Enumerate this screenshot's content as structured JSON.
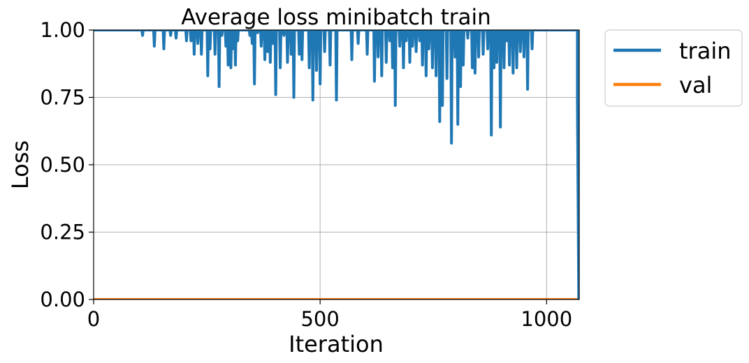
{
  "chart_data": {
    "type": "line",
    "title": "Average loss minibatch train",
    "xlabel": "Iteration",
    "ylabel": "Loss",
    "xlim": [
      0,
      1072
    ],
    "ylim": [
      0,
      1
    ],
    "x_ticks": [
      0,
      500,
      1000
    ],
    "x_tick_labels": [
      "0",
      "500",
      "1000"
    ],
    "y_ticks": [
      0,
      0.25,
      0.5,
      0.75,
      1.0
    ],
    "y_tick_labels": [
      "0.00",
      "0.25",
      "0.50",
      "0.75",
      "1.00"
    ],
    "grid": true,
    "legend_position": "outside-top-right",
    "series": [
      {
        "name": "train",
        "color": "#1f77b4",
        "baseline": 1.0,
        "dips": [
          [
            108,
            0.98
          ],
          [
            134,
            0.94
          ],
          [
            155,
            0.93
          ],
          [
            170,
            0.98
          ],
          [
            182,
            0.97
          ],
          [
            205,
            0.96
          ],
          [
            215,
            0.96
          ],
          [
            222,
            0.91
          ],
          [
            230,
            0.95
          ],
          [
            238,
            0.91
          ],
          [
            252,
            0.83
          ],
          [
            257,
            0.93
          ],
          [
            268,
            0.91
          ],
          [
            277,
            0.79
          ],
          [
            283,
            0.98
          ],
          [
            292,
            0.94
          ],
          [
            297,
            0.87
          ],
          [
            303,
            0.86
          ],
          [
            307,
            0.93
          ],
          [
            313,
            0.87
          ],
          [
            318,
            0.96
          ],
          [
            345,
            0.98
          ],
          [
            350,
            0.95
          ],
          [
            355,
            0.8
          ],
          [
            362,
            0.99
          ],
          [
            370,
            0.94
          ],
          [
            378,
            0.89
          ],
          [
            384,
            0.92
          ],
          [
            390,
            0.88
          ],
          [
            396,
            0.95
          ],
          [
            402,
            0.76
          ],
          [
            412,
            0.86
          ],
          [
            420,
            0.98
          ],
          [
            428,
            0.88
          ],
          [
            436,
            0.91
          ],
          [
            442,
            0.75
          ],
          [
            454,
            0.91
          ],
          [
            460,
            0.89
          ],
          [
            476,
            0.86
          ],
          [
            484,
            0.74
          ],
          [
            492,
            0.85
          ],
          [
            500,
            0.8
          ],
          [
            510,
            0.92
          ],
          [
            522,
            0.87
          ],
          [
            536,
            0.74
          ],
          [
            570,
            0.89
          ],
          [
            584,
            0.95
          ],
          [
            604,
            0.91
          ],
          [
            620,
            0.81
          ],
          [
            628,
            0.9
          ],
          [
            636,
            0.83
          ],
          [
            646,
            0.88
          ],
          [
            654,
            0.96
          ],
          [
            660,
            0.86
          ],
          [
            666,
            0.72
          ],
          [
            676,
            0.94
          ],
          [
            684,
            0.86
          ],
          [
            690,
            0.96
          ],
          [
            698,
            0.88
          ],
          [
            704,
            0.94
          ],
          [
            712,
            0.92
          ],
          [
            720,
            0.96
          ],
          [
            726,
            0.87
          ],
          [
            734,
            0.83
          ],
          [
            740,
            0.93
          ],
          [
            748,
            0.86
          ],
          [
            756,
            0.83
          ],
          [
            764,
            0.66
          ],
          [
            770,
            0.72
          ],
          [
            780,
            0.82
          ],
          [
            790,
            0.58
          ],
          [
            798,
            0.9
          ],
          [
            804,
            0.65
          ],
          [
            810,
            0.79
          ],
          [
            816,
            0.87
          ],
          [
            826,
            0.97
          ],
          [
            836,
            0.86
          ],
          [
            842,
            0.84
          ],
          [
            850,
            0.9
          ],
          [
            860,
            0.91
          ],
          [
            870,
            0.93
          ],
          [
            878,
            0.61
          ],
          [
            884,
            0.86
          ],
          [
            890,
            0.88
          ],
          [
            898,
            0.64
          ],
          [
            906,
            0.86
          ],
          [
            912,
            0.96
          ],
          [
            918,
            0.87
          ],
          [
            926,
            0.84
          ],
          [
            934,
            0.86
          ],
          [
            942,
            0.92
          ],
          [
            950,
            0.9
          ],
          [
            958,
            0.78
          ],
          [
            968,
            0.93
          ]
        ],
        "end_drop": [
          [
            1068,
            1.0
          ],
          [
            1068,
            0.74
          ],
          [
            1071,
            0.0
          ]
        ]
      },
      {
        "name": "val",
        "color": "#ff7f0e",
        "x": [
          0,
          1072
        ],
        "y": [
          0.0,
          0.0
        ]
      }
    ]
  }
}
